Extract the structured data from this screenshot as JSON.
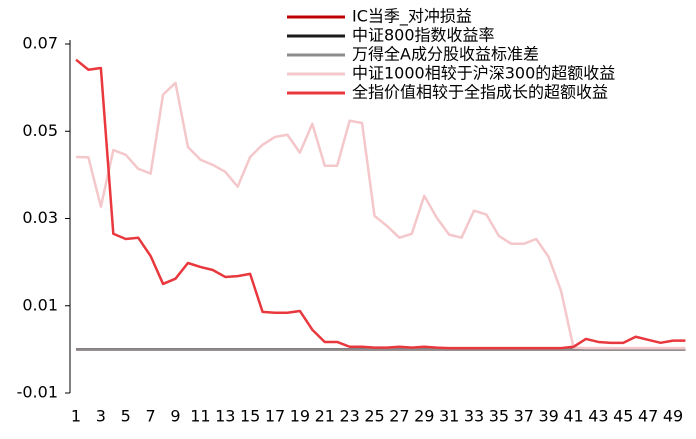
{
  "chart_data": {
    "type": "line",
    "categories": [
      "1",
      null,
      "3",
      null,
      "5",
      null,
      "7",
      null,
      "9",
      null,
      "11",
      null,
      "13",
      null,
      "15",
      null,
      "17",
      null,
      "19",
      null,
      "21",
      null,
      "23",
      null,
      "25",
      null,
      "27",
      null,
      "29",
      null,
      "31",
      null,
      "33",
      null,
      "35",
      null,
      "37",
      null,
      "39",
      null,
      "41",
      null,
      "43",
      null,
      "45",
      null,
      "47",
      null,
      "49",
      null
    ],
    "ylim": [
      -0.01,
      0.07
    ],
    "yticks": [
      {
        "value": -0.01,
        "label": "-0.01"
      },
      {
        "value": 0.01,
        "label": "0.01"
      },
      {
        "value": 0.03,
        "label": "0.03"
      },
      {
        "value": 0.05,
        "label": "0.05"
      },
      {
        "value": 0.07,
        "label": "0.07"
      }
    ],
    "legend": "top-right",
    "series": [
      {
        "name": "IC当季_对冲损益",
        "color": "#c00000",
        "values": [
          0,
          0,
          0,
          0,
          0,
          0,
          0,
          0,
          0,
          0,
          0,
          0,
          0,
          0,
          0,
          0,
          0,
          0,
          0,
          0,
          0,
          0,
          0,
          0,
          0,
          0,
          0,
          0,
          0,
          0,
          0,
          0,
          0,
          0,
          0,
          0,
          0,
          0,
          0,
          0,
          0,
          0,
          0,
          0,
          0,
          0,
          0,
          0,
          0,
          0
        ]
      },
      {
        "name": "中证800指数收益率",
        "color": "#1a1a1a",
        "values": [
          0,
          0,
          0,
          0,
          0,
          0,
          0,
          0,
          0,
          0,
          0,
          0,
          0,
          0,
          0,
          0,
          0,
          0,
          0,
          0,
          0,
          0,
          0,
          0,
          0,
          0,
          0,
          0,
          0,
          0,
          0,
          0,
          0,
          0,
          0,
          0,
          0,
          0,
          0,
          0,
          0,
          0,
          0,
          0,
          0,
          0,
          0,
          0,
          0,
          0
        ]
      },
      {
        "name": "万得全A成分股收益标准差",
        "color": "#8c8c8c",
        "values": [
          0,
          0,
          0,
          0,
          0,
          0,
          0,
          0,
          0,
          0,
          0,
          0,
          0,
          0,
          0,
          0,
          0,
          0,
          0,
          0,
          0,
          0,
          0,
          0,
          0,
          0,
          0,
          0,
          0,
          0,
          0,
          0,
          0,
          0,
          0,
          0,
          0,
          0,
          0,
          0,
          0,
          0,
          0,
          0,
          0,
          0,
          0,
          0,
          0,
          0
        ]
      },
      {
        "name": "中证1000相较于沪深300的超额收益",
        "color": "#f4c7cb",
        "values": [
          0.0441,
          0.044,
          0.0327,
          0.0457,
          0.0446,
          0.0414,
          0.0403,
          0.0584,
          0.0611,
          0.0464,
          0.0435,
          0.0423,
          0.0407,
          0.0373,
          0.0441,
          0.0469,
          0.0487,
          0.0492,
          0.0451,
          0.0517,
          0.0421,
          0.0421,
          0.0524,
          0.0519,
          0.0306,
          0.0283,
          0.0256,
          0.0265,
          0.0352,
          0.0302,
          0.0263,
          0.0256,
          0.0318,
          0.0309,
          0.026,
          0.0242,
          0.0242,
          0.0253,
          0.0212,
          0.0134,
          0.0004,
          0.0003,
          0.0003,
          0.0003,
          0.0003,
          0.0003,
          0.0003,
          0.0003,
          0.0003,
          0.0003
        ]
      },
      {
        "name": "全指价值相较于全指成长的超额收益",
        "color": "#e8383d",
        "values": [
          0.0664,
          0.0641,
          0.0645,
          0.0265,
          0.0253,
          0.0256,
          0.0214,
          0.015,
          0.0162,
          0.0198,
          0.0189,
          0.0182,
          0.0166,
          0.0168,
          0.0173,
          0.0086,
          0.0084,
          0.0084,
          0.0088,
          0.0045,
          0.0017,
          0.0017,
          0.0006,
          0.0006,
          0.0004,
          0.0004,
          0.0006,
          0.0004,
          0.0006,
          0.0004,
          0.0003,
          0.0003,
          0.0003,
          0.0003,
          0.0003,
          0.0003,
          0.0003,
          0.0003,
          0.0003,
          0.0003,
          0.0006,
          0.0024,
          0.0017,
          0.0015,
          0.0015,
          0.0029,
          0.0022,
          0.0015,
          0.002,
          0.002
        ]
      }
    ]
  }
}
